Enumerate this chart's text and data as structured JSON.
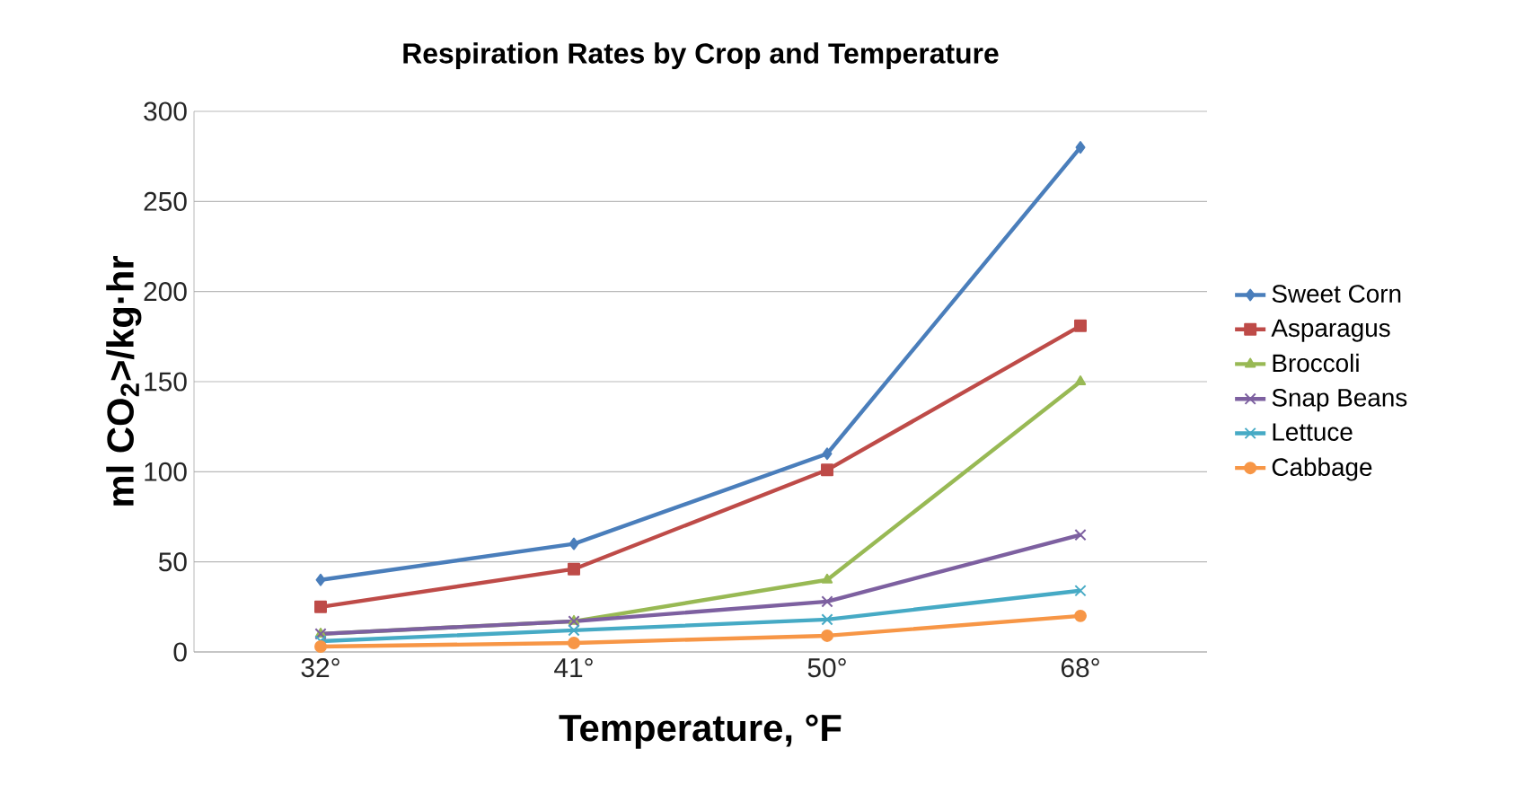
{
  "chart_data": {
    "type": "line",
    "title": "Respiration Rates by Crop and Temperature",
    "xlabel": "Temperature, °F",
    "ylabel": "ml CO$_{2}$>/kg·hr",
    "categories": [
      "32°",
      "41°",
      "50°",
      "68°"
    ],
    "ylim": [
      0,
      300
    ],
    "yticks": [
      0,
      50,
      100,
      150,
      200,
      250,
      300
    ],
    "grid": "y",
    "legend": "right",
    "series": [
      {
        "name": "Sweet Corn",
        "color": "#4a7ebb",
        "marker": "diamond",
        "values": [
          40,
          60,
          110,
          280
        ]
      },
      {
        "name": "Asparagus",
        "color": "#be4b48",
        "marker": "square",
        "values": [
          25,
          46,
          101,
          181
        ]
      },
      {
        "name": "Broccoli",
        "color": "#98b954",
        "marker": "triangle",
        "values": [
          10,
          17,
          40,
          150
        ]
      },
      {
        "name": "Snap Beans",
        "color": "#7d60a0",
        "marker": "cross",
        "values": [
          10,
          17,
          28,
          65
        ]
      },
      {
        "name": "Lettuce",
        "color": "#46aac5",
        "marker": "cross",
        "values": [
          6,
          12,
          18,
          34
        ]
      },
      {
        "name": "Cabbage",
        "color": "#f79646",
        "marker": "circle",
        "values": [
          3,
          5,
          9,
          20
        ]
      }
    ]
  }
}
